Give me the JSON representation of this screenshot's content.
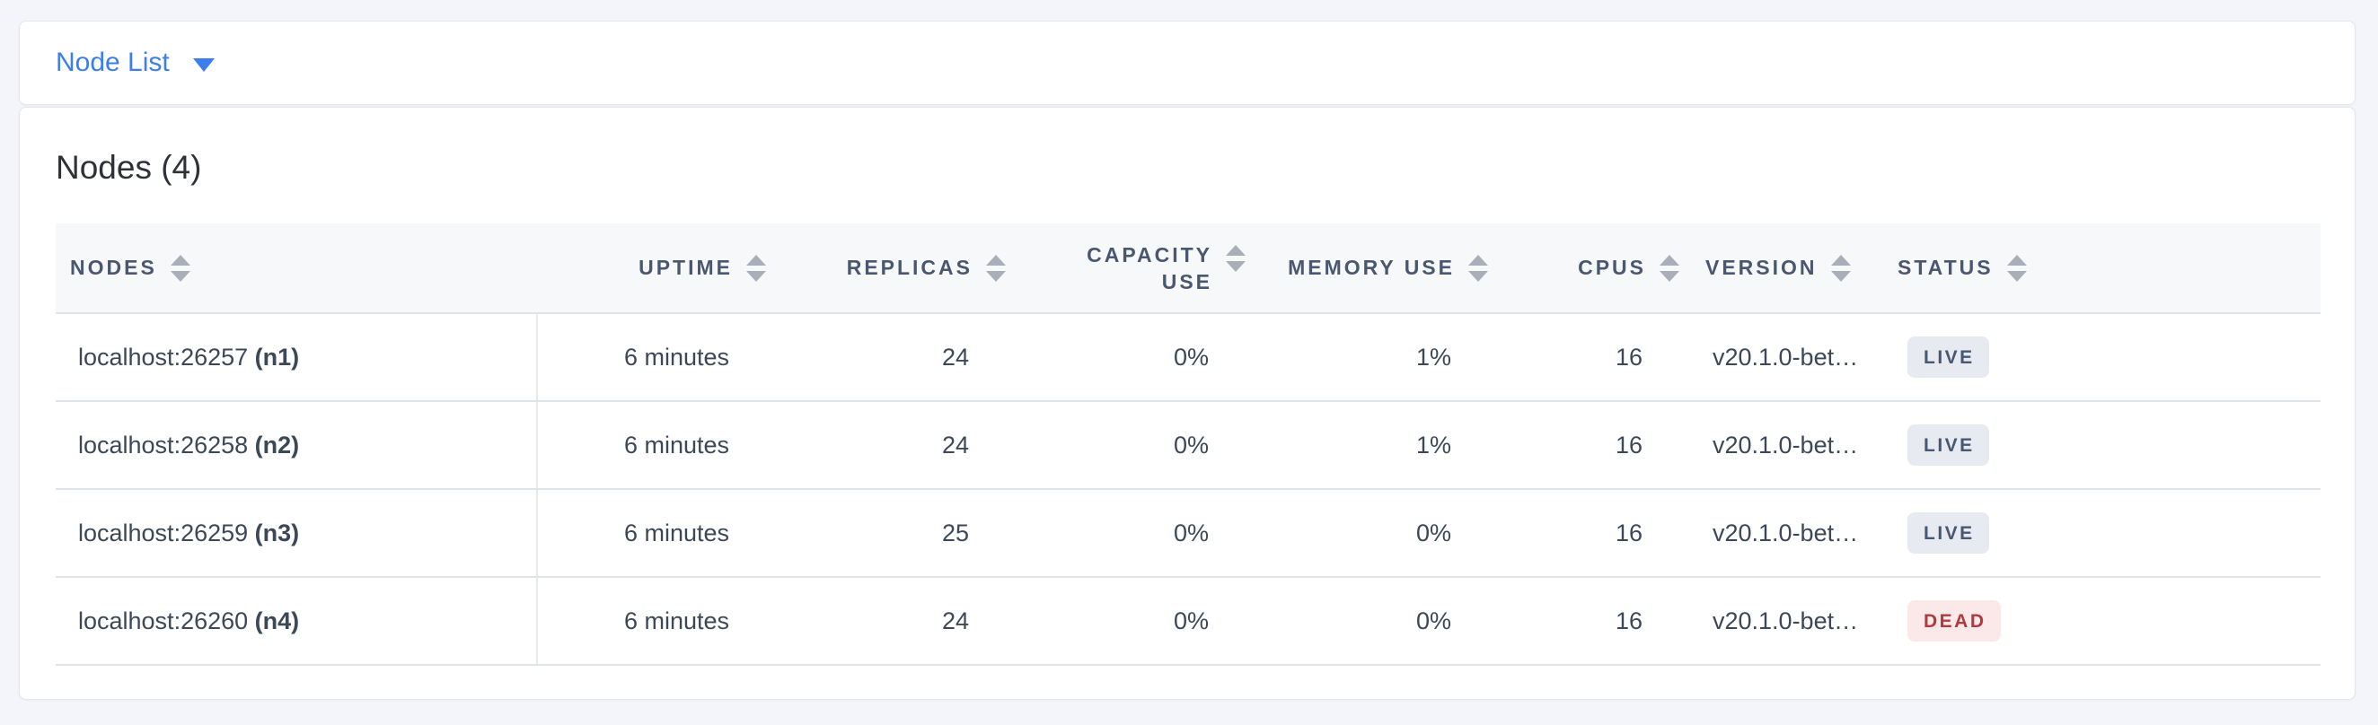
{
  "toolbar": {
    "dropdown_label": "Node List"
  },
  "main": {
    "title": "Nodes (4)",
    "table": {
      "columns": [
        {
          "key": "nodes",
          "label": "NODES",
          "align": "left"
        },
        {
          "key": "uptime",
          "label": "UPTIME",
          "align": "right"
        },
        {
          "key": "replicas",
          "label": "REPLICAS",
          "align": "right"
        },
        {
          "key": "capacity_use",
          "label": "CAPACITY USE",
          "label_lines": [
            "CAPACITY",
            "USE"
          ],
          "align": "right"
        },
        {
          "key": "memory_use",
          "label": "MEMORY USE",
          "align": "right"
        },
        {
          "key": "cpus",
          "label": "CPUS",
          "align": "right"
        },
        {
          "key": "version",
          "label": "VERSION",
          "align": "left"
        },
        {
          "key": "status",
          "label": "STATUS",
          "align": "left"
        }
      ],
      "rows": [
        {
          "address": "localhost:26257",
          "name": "(n1)",
          "uptime": "6 minutes",
          "replicas": "24",
          "capacity_use": "0%",
          "memory_use": "1%",
          "cpus": "16",
          "version": "v20.1.0-bet…",
          "status": "LIVE"
        },
        {
          "address": "localhost:26258",
          "name": "(n2)",
          "uptime": "6 minutes",
          "replicas": "24",
          "capacity_use": "0%",
          "memory_use": "1%",
          "cpus": "16",
          "version": "v20.1.0-bet…",
          "status": "LIVE"
        },
        {
          "address": "localhost:26259",
          "name": "(n3)",
          "uptime": "6 minutes",
          "replicas": "25",
          "capacity_use": "0%",
          "memory_use": "0%",
          "cpus": "16",
          "version": "v20.1.0-bet…",
          "status": "LIVE"
        },
        {
          "address": "localhost:26260",
          "name": "(n4)",
          "uptime": "6 minutes",
          "replicas": "24",
          "capacity_use": "0%",
          "memory_use": "0%",
          "cpus": "16",
          "version": "v20.1.0-bet…",
          "status": "DEAD"
        }
      ]
    }
  },
  "colors": {
    "accent_blue": "#3b7ef0",
    "live_badge_bg": "#e7eaf1",
    "live_badge_text": "#475872",
    "dead_badge_bg": "#fbe8e8",
    "dead_badge_text": "#b23a3e",
    "header_text": "#4a5770",
    "body_text": "#3c4858",
    "page_bg": "#f4f5fa"
  }
}
